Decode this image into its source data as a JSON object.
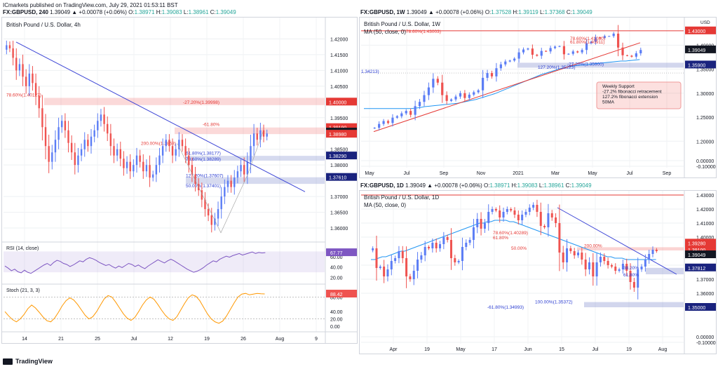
{
  "header": {
    "publisher": "ICmarkets published on TradingView.com, July 29, 2021 01:53:11 BST"
  },
  "footer": {
    "brand": "TradingView",
    "logo_icon": "tradingview-logo-icon"
  },
  "colors": {
    "up": "#5b7df5",
    "down": "#ef5350",
    "trend": "#3d46d6",
    "fib_red": "#e53935",
    "fib_blue": "#2a3cd1",
    "ma": "#2196f3",
    "rsi": "#7e57c2",
    "stoch": "#ff9800"
  },
  "charts": [
    {
      "id": "4h",
      "quote": {
        "symbol": "FX:GBPUSD, 240",
        "change": "1.39049  ▲ +0.00078 (+0.06%)",
        "open_label": "O:",
        "open": "1.38971",
        "high_label": "H:",
        "high": "1.39083",
        "low_label": "L:",
        "low": "1.38961",
        "close_label": "C:",
        "close": "1.39049"
      },
      "title": "British Pound / U.S. Dollar, 4h",
      "price_labels": [
        1.42,
        1.415,
        1.41,
        1.405,
        1.395,
        1.385,
        1.38,
        1.37,
        1.365,
        1.36
      ],
      "highlight_labels": [
        {
          "text": "1.40000",
          "value": 1.4,
          "color": "#e53935"
        },
        {
          "text": "1.39190",
          "value": 1.3919,
          "color": "#e53935"
        },
        {
          "text": "1.39049",
          "value": 1.39049,
          "color": "#131722"
        },
        {
          "text": "1.38980",
          "value": 1.3898,
          "color": "#e53935"
        },
        {
          "text": "1.38290",
          "value": 1.3829,
          "color": "#1a237e"
        },
        {
          "text": "1.37610",
          "value": 1.3761,
          "color": "#1a237e"
        }
      ],
      "annotations": [
        {
          "text": "78.60%(1.40127)",
          "color": "#e53935"
        },
        {
          "text": "-27.20%(1.39998)",
          "color": "#e53935"
        },
        {
          "text": "-61.80%",
          "color": "#e53935"
        },
        {
          "text": "200.00%(1.3868)",
          "color": "#e53935"
        },
        {
          "text": "61.80%(1.38177)",
          "color": "#2a3cd1"
        },
        {
          "text": "78.60%(1.38289)",
          "color": "#2a3cd1"
        },
        {
          "text": "127.20%(1.37607)",
          "color": "#2a3cd1"
        },
        {
          "text": "50.00%(1.37401)",
          "color": "#2a3cd1"
        }
      ],
      "x_labels": [
        "14",
        "21",
        "25",
        "Jul",
        "12",
        "19",
        "26",
        "Aug",
        "9"
      ],
      "ohlc_close": [
        1.418,
        1.417,
        1.414,
        1.41,
        1.412,
        1.408,
        1.405,
        1.409,
        1.406,
        1.402,
        1.398,
        1.392,
        1.386,
        1.381,
        1.384,
        1.388,
        1.392,
        1.394,
        1.391,
        1.387,
        1.384,
        1.38,
        1.383,
        1.385,
        1.388,
        1.386,
        1.389,
        1.391,
        1.394,
        1.396,
        1.393,
        1.39,
        1.386,
        1.383,
        1.385,
        1.382,
        1.379,
        1.381,
        1.378,
        1.38,
        1.383,
        1.381,
        1.378,
        1.38,
        1.376,
        1.377,
        1.38,
        1.383,
        1.386,
        1.388,
        1.386,
        1.383,
        1.385,
        1.388,
        1.386,
        1.383,
        1.38,
        1.377,
        1.374,
        1.372,
        1.369,
        1.366,
        1.364,
        1.361,
        1.363,
        1.366,
        1.37,
        1.373,
        1.375,
        1.373,
        1.376,
        1.378,
        1.38,
        1.377,
        1.381,
        1.386,
        1.39,
        1.388,
        1.391,
        1.389,
        1.39
      ],
      "rsi": {
        "label": "RSI (14, close)",
        "value_label": "67.77",
        "ticks": [
          60.0,
          40.0,
          20.0
        ],
        "values": [
          42,
          38,
          33,
          36,
          31,
          29,
          34,
          30,
          28,
          32,
          36,
          40,
          44,
          47,
          43,
          49,
          53,
          51,
          47,
          45,
          41,
          44,
          48,
          52,
          50,
          55,
          58,
          56,
          53,
          49,
          46,
          43,
          45,
          41,
          38,
          42,
          39,
          43,
          47,
          45,
          41,
          44,
          40,
          37,
          42,
          46,
          50,
          54,
          51,
          48,
          52,
          55,
          52,
          48,
          44,
          40,
          36,
          33,
          30,
          32,
          35,
          39,
          44,
          48,
          52,
          50,
          55,
          58,
          61,
          59,
          62,
          64,
          66,
          63,
          65,
          67,
          69,
          66,
          68,
          67,
          67.77
        ]
      },
      "stoch": {
        "label": "Stoch (21, 3, 3)",
        "value_label": "88.42",
        "ticks": [
          80.0,
          40.0,
          20.0,
          0.0
        ],
        "values": [
          40,
          28,
          18,
          12,
          20,
          32,
          48,
          58,
          50,
          38,
          25,
          15,
          12,
          22,
          38,
          56,
          70,
          78,
          72,
          60,
          45,
          30,
          20,
          26,
          40,
          58,
          75,
          84,
          80,
          66,
          50,
          34,
          22,
          16,
          24,
          40,
          58,
          72,
          80,
          74,
          60,
          44,
          30,
          20,
          16,
          26,
          44,
          62,
          78,
          86,
          82,
          70,
          52,
          34,
          20,
          12,
          8,
          14,
          28,
          46,
          64,
          80,
          88,
          90,
          86,
          88,
          90,
          89,
          88.42
        ]
      }
    },
    {
      "id": "1w",
      "quote": {
        "symbol": "FX:GBPUSD, 1W",
        "change": "1.39049  ▲ +0.00078 (+0.06%)",
        "open_label": "O:",
        "open": "1.37528",
        "high_label": "H:",
        "high": "1.39119",
        "low_label": "L:",
        "low": "1.37368",
        "close_label": "C:",
        "close": "1.39049"
      },
      "title": "British Pound / U.S. Dollar, 1W",
      "ma_label": "MA (50, close, 0)",
      "currency": "USD",
      "price_labels": [
        1.4,
        1.35,
        1.3,
        1.25,
        1.2,
        0.0,
        -0.1
      ],
      "highlight_labels": [
        {
          "text": "1.43000",
          "value": 1.43,
          "color": "#e53935"
        },
        {
          "text": "1.39049",
          "value": 1.39049,
          "color": "#131722"
        },
        {
          "text": "1.35900",
          "value": 1.359,
          "color": "#1a237e"
        }
      ],
      "annotations": [
        {
          "text": "78.60%(1.43003)",
          "color": "#e53935"
        },
        {
          "text": "78.60%(1.41080)",
          "color": "#e53935"
        },
        {
          "text": "61.80%(1.40911)",
          "color": "#e53935"
        },
        {
          "text": "-27.20%(1.35900)",
          "color": "#2a3cd1"
        },
        {
          "text": "127.20%(1.35223)",
          "color": "#2a3cd1"
        },
        {
          "text": "1.34213)",
          "color": "#2a3cd1"
        }
      ],
      "note": {
        "lines": [
          "Weekly Support",
          "-27.2% fibonacci retracement",
          "127.2% fibonacci extension",
          "50MA"
        ]
      },
      "x_labels": [
        "May",
        "Jul",
        "Sep",
        "Nov",
        "2021",
        "Mar",
        "May",
        "Jul",
        "Sep"
      ],
      "ohlc_close": [
        1.228,
        1.236,
        1.242,
        1.238,
        1.249,
        1.252,
        1.258,
        1.263,
        1.255,
        1.273,
        1.282,
        1.296,
        1.312,
        1.33,
        1.322,
        1.296,
        1.284,
        1.287,
        1.293,
        1.3,
        1.29,
        1.297,
        1.302,
        1.306,
        1.332,
        1.342,
        1.335,
        1.352,
        1.36,
        1.366,
        1.368,
        1.372,
        1.385,
        1.391,
        1.393,
        1.38,
        1.378,
        1.388,
        1.387,
        1.394,
        1.397,
        1.398,
        1.381,
        1.382,
        1.387,
        1.385,
        1.39,
        1.404,
        1.407,
        1.416,
        1.415,
        1.419,
        1.419,
        1.424,
        1.395,
        1.379,
        1.378,
        1.376,
        1.383,
        1.39
      ],
      "ma_values": [
        1.268,
        1.268,
        1.268,
        1.268,
        1.268,
        1.268,
        1.268,
        1.268,
        1.268,
        1.268,
        1.268,
        1.269,
        1.27,
        1.272,
        1.273,
        1.274,
        1.275,
        1.276,
        1.277,
        1.278,
        1.279,
        1.281,
        1.283,
        1.285,
        1.287,
        1.29,
        1.293,
        1.296,
        1.299,
        1.303,
        1.307,
        1.311,
        1.315,
        1.319,
        1.323,
        1.327,
        1.331,
        1.335,
        1.339,
        1.342,
        1.345,
        1.348,
        1.351,
        1.353,
        1.355,
        1.357,
        1.358,
        1.359,
        1.36,
        1.361,
        1.362,
        1.363,
        1.364,
        1.365,
        1.366,
        1.367,
        1.367,
        1.368,
        1.369,
        1.37
      ]
    },
    {
      "id": "1d",
      "quote": {
        "symbol": "FX:GBPUSD, 1D",
        "change": "1.39049  ▲ +0.00078 (+0.06%)",
        "open_label": "O:",
        "open": "1.38971",
        "high_label": "H:",
        "high": "1.39083",
        "low_label": "L:",
        "low": "1.38961",
        "close_label": "C:",
        "close": "1.39049"
      },
      "title": "British Pound / U.S. Dollar, 1D",
      "ma_label": "MA (50, close, 0)",
      "price_labels": [
        1.43,
        1.42,
        1.41,
        1.4,
        1.38,
        1.37,
        1.36,
        0.0,
        -0.1
      ],
      "highlight_labels": [
        {
          "text": "1.39280",
          "value": 1.3928,
          "color": "#e53935"
        },
        {
          "text": "1.39100",
          "value": 1.391,
          "color": "#e53935"
        },
        {
          "text": "1.39049",
          "value": 1.39049,
          "color": "#131722"
        },
        {
          "text": "1.37812",
          "value": 1.37812,
          "color": "#1a237e"
        },
        {
          "text": "1.35000",
          "value": 1.35,
          "color": "#1a237e"
        }
      ],
      "annotations": [
        {
          "text": "78.60%(1.40289)",
          "color": "#e53935"
        },
        {
          "text": "61.80%",
          "color": "#e53935"
        },
        {
          "text": "50.00%",
          "color": "#e53935"
        },
        {
          "text": "200.00%",
          "color": "#e53935"
        },
        {
          "text": "38.20%",
          "color": "#2a3cd1"
        },
        {
          "text": "61.80%",
          "color": "#2a3cd1"
        },
        {
          "text": "100.00%(1.35372)",
          "color": "#2a3cd1"
        },
        {
          "text": "-61.80%(1.34993)",
          "color": "#2a3cd1"
        }
      ],
      "x_labels": [
        "Apr",
        "19",
        "May",
        "17",
        "Jun",
        "15",
        "Jul",
        "19",
        "Aug"
      ],
      "ohlc_close": [
        1.392,
        1.378,
        1.379,
        1.372,
        1.377,
        1.383,
        1.385,
        1.39,
        1.385,
        1.372,
        1.37,
        1.376,
        1.384,
        1.387,
        1.393,
        1.392,
        1.396,
        1.392,
        1.395,
        1.4,
        1.398,
        1.385,
        1.382,
        1.383,
        1.393,
        1.396,
        1.398,
        1.407,
        1.413,
        1.406,
        1.41,
        1.418,
        1.42,
        1.419,
        1.414,
        1.418,
        1.42,
        1.419,
        1.416,
        1.412,
        1.416,
        1.418,
        1.421,
        1.423,
        1.418,
        1.408,
        1.407,
        1.417,
        1.414,
        1.41,
        1.389,
        1.382,
        1.392,
        1.39,
        1.387,
        1.389,
        1.384,
        1.377,
        1.382,
        1.372,
        1.382,
        1.386,
        1.383,
        1.38,
        1.379,
        1.376,
        1.377,
        1.381,
        1.376,
        1.368,
        1.364,
        1.377,
        1.379,
        1.384,
        1.388,
        1.391,
        1.39
      ],
      "ma_values": [
        1.384,
        1.384,
        1.385,
        1.386,
        1.386,
        1.387,
        1.388,
        1.389,
        1.39,
        1.39,
        1.391,
        1.392,
        1.393,
        1.394,
        1.395,
        1.396,
        1.397,
        1.398,
        1.399,
        1.4,
        1.401,
        1.402,
        1.403,
        1.404,
        1.405,
        1.406,
        1.407,
        1.408,
        1.409,
        1.41,
        1.41,
        1.411,
        1.411,
        1.412,
        1.412,
        1.412,
        1.412,
        1.411,
        1.411,
        1.41,
        1.409,
        1.408,
        1.407,
        1.406,
        1.405,
        1.404,
        1.403,
        1.402,
        1.401,
        1.4,
        1.399,
        1.398,
        1.397,
        1.396,
        1.395,
        1.394,
        1.393,
        1.392,
        1.391,
        1.39,
        1.389,
        1.388,
        1.387,
        1.386,
        1.386,
        1.385,
        1.385,
        1.385,
        1.384,
        1.384,
        1.384,
        1.384,
        1.384,
        1.384,
        1.384,
        1.384,
        1.384
      ]
    }
  ],
  "chart_data": [
    {
      "type": "candlestick",
      "title": "British Pound / U.S. Dollar, 4h",
      "ylim": [
        1.356,
        1.425
      ],
      "levels": [
        1.4,
        1.3919,
        1.3898,
        1.3829,
        1.3761
      ],
      "grid": true,
      "legend": "none"
    },
    {
      "type": "candlestick",
      "title": "British Pound / U.S. Dollar, 1W",
      "ylim": [
        1.18,
        1.44
      ],
      "levels": [
        1.43,
        1.359
      ],
      "grid": true,
      "legend": "none"
    },
    {
      "type": "candlestick",
      "title": "British Pound / U.S. Dollar, 1D",
      "ylim": [
        1.345,
        1.43
      ],
      "levels": [
        1.3928,
        1.391,
        1.37812,
        1.35
      ],
      "grid": true,
      "legend": "none"
    }
  ]
}
